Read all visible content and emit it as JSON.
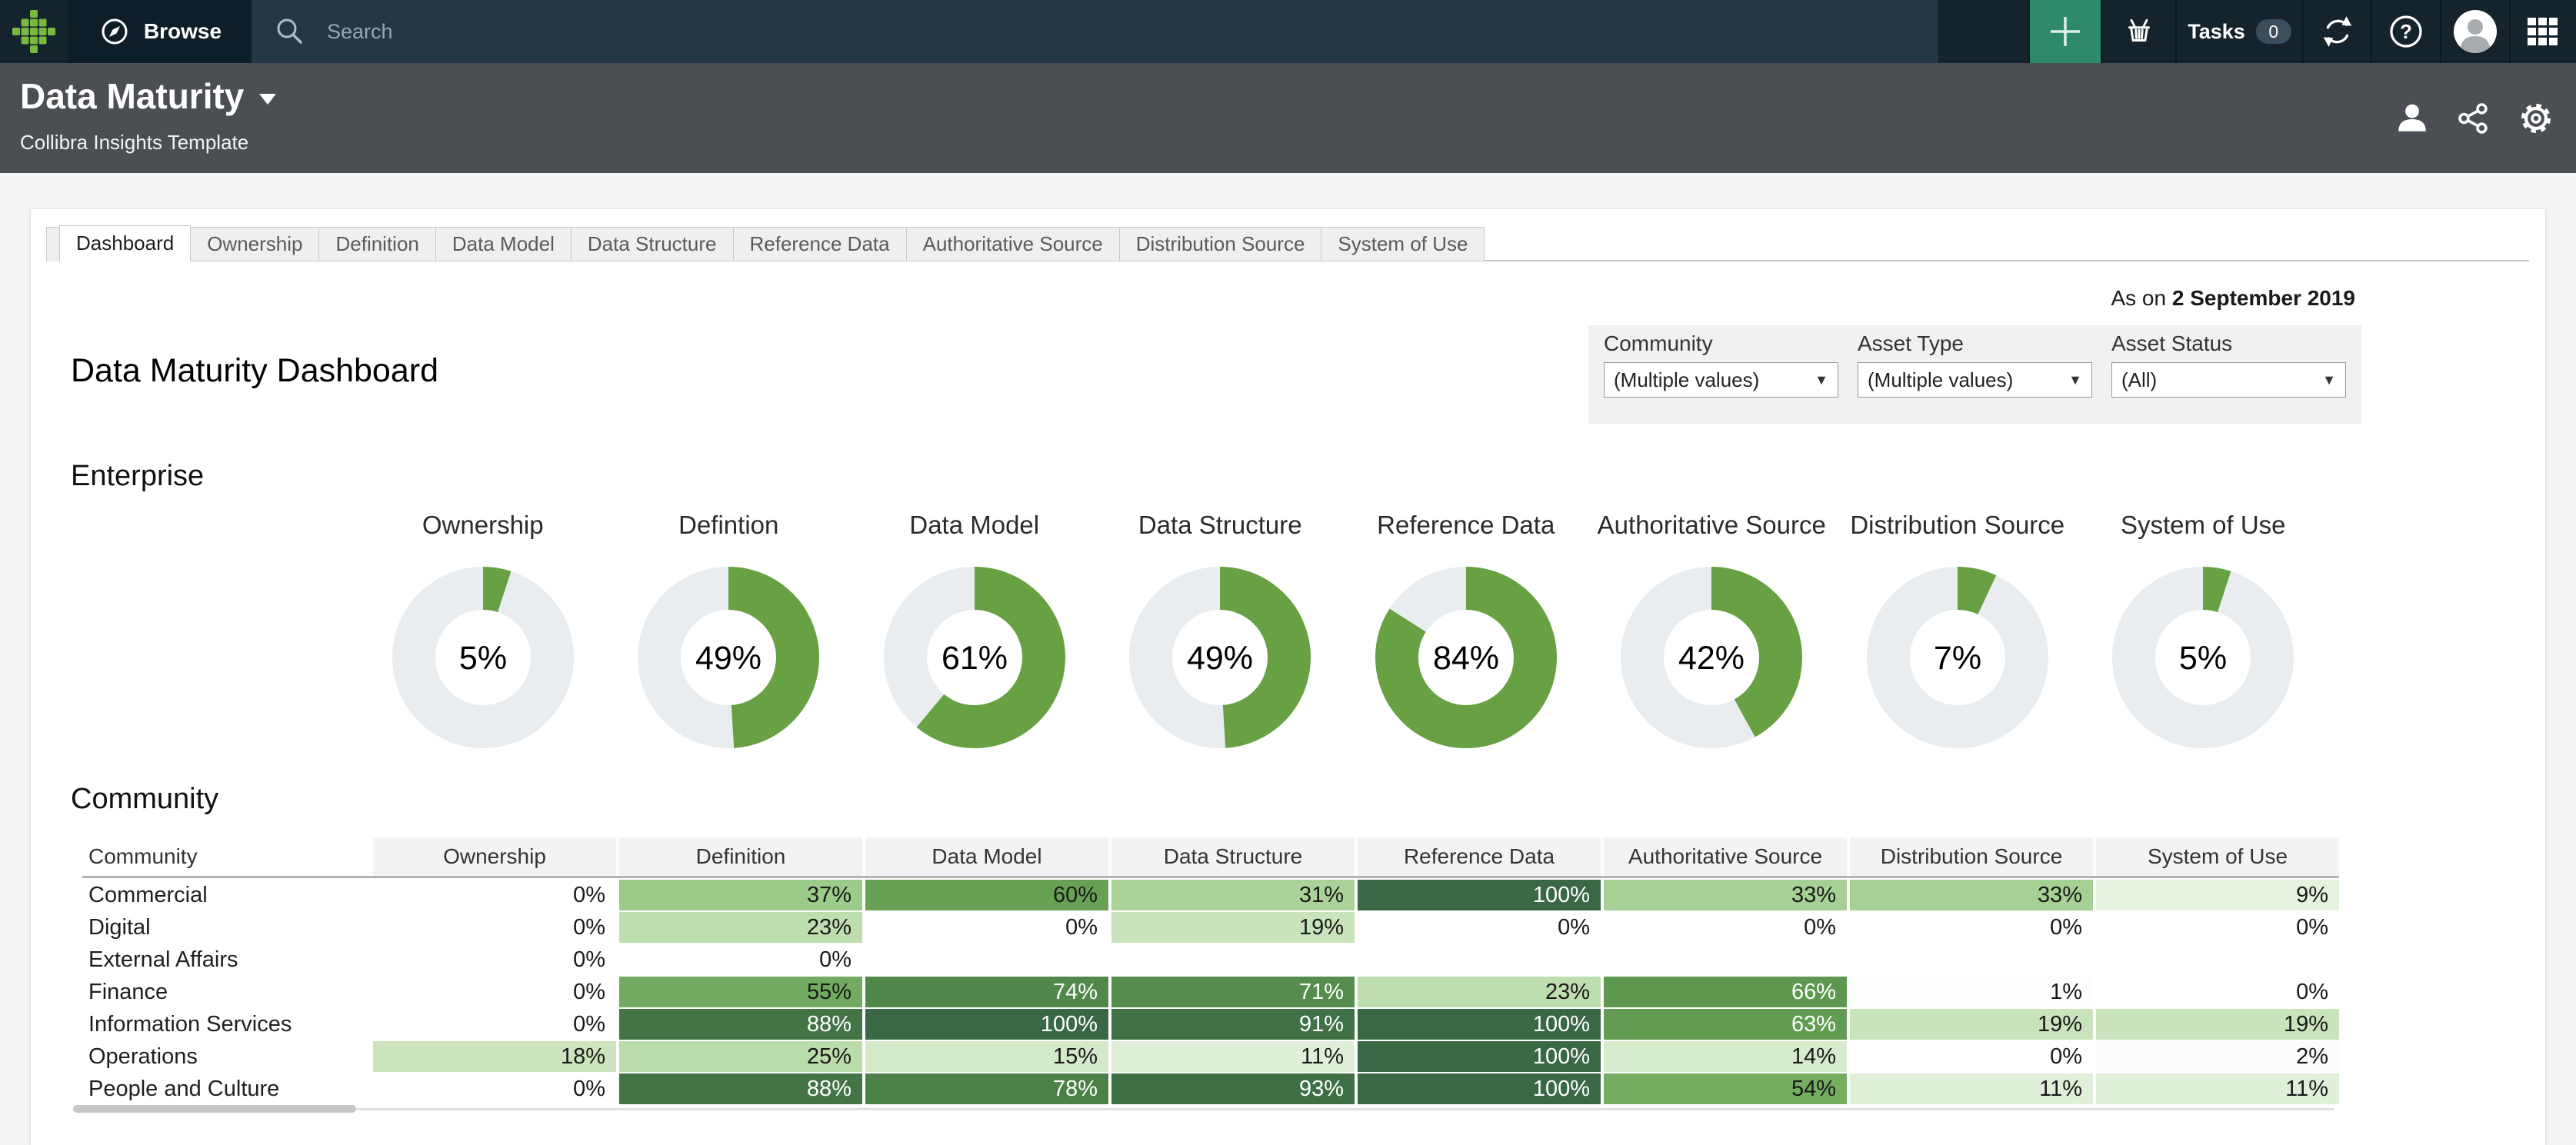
{
  "topbar": {
    "browse_label": "Browse",
    "search_placeholder": "Search",
    "tasks_label": "Tasks",
    "tasks_count": "0"
  },
  "header": {
    "title": "Data Maturity",
    "subtitle": "Collibra Insights Template"
  },
  "tabs": {
    "active": "Dashboard",
    "items": [
      "Dashboard",
      "Ownership",
      "Definition",
      "Data Model",
      "Data Structure",
      "Reference Data",
      "Authoritative Source",
      "Distribution Source",
      "System of Use"
    ]
  },
  "as_on": {
    "prefix": "As on",
    "date": "2 September 2019"
  },
  "filters": {
    "fields": [
      {
        "label": "Community",
        "value": "(Multiple values)"
      },
      {
        "label": "Asset Type",
        "value": "(Multiple values)"
      },
      {
        "label": "Asset Status",
        "value": "(All)"
      }
    ]
  },
  "main": {
    "page_title": "Data Maturity Dashboard",
    "enterprise_heading": "Enterprise",
    "community_heading": "Community"
  },
  "colors": {
    "accent_green": "#68a144",
    "donut_track": "#e9edf0",
    "topbar_bg": "#15232d",
    "search_bg": "#243743",
    "header_bg": "#4b4f54",
    "plus_button": "#2e8a68",
    "heatmap_max": "#3a6845"
  },
  "chart_data": [
    {
      "type": "pie",
      "subtype": "donut-grid",
      "section": "Enterprise",
      "unit": "%",
      "donuts": [
        {
          "label": "Ownership",
          "value": 5
        },
        {
          "label": "Defintion",
          "value": 49
        },
        {
          "label": "Data Model",
          "value": 61
        },
        {
          "label": "Data Structure",
          "value": 49
        },
        {
          "label": "Reference Data",
          "value": 84
        },
        {
          "label": "Authoritative Source",
          "value": 42
        },
        {
          "label": "Distribution Source",
          "value": 7
        },
        {
          "label": "System of Use",
          "value": 5
        }
      ]
    },
    {
      "type": "heatmap",
      "section": "Community",
      "unit": "%",
      "columns": [
        "Community",
        "Ownership",
        "Definition",
        "Data Model",
        "Data Structure",
        "Reference Data",
        "Authoritative Source",
        "Distribution Source",
        "System of Use"
      ],
      "rows": [
        {
          "label": "Commercial",
          "values": [
            0,
            37,
            60,
            31,
            100,
            33,
            33,
            9
          ]
        },
        {
          "label": "Digital",
          "values": [
            0,
            23,
            0,
            19,
            0,
            0,
            0,
            0
          ]
        },
        {
          "label": "External Affairs",
          "values": [
            0,
            0,
            null,
            null,
            null,
            null,
            null,
            null
          ]
        },
        {
          "label": "Finance",
          "values": [
            0,
            55,
            74,
            71,
            23,
            66,
            1,
            0
          ]
        },
        {
          "label": "Information Services",
          "values": [
            0,
            88,
            100,
            91,
            100,
            63,
            19,
            19
          ]
        },
        {
          "label": "Operations",
          "values": [
            18,
            25,
            15,
            11,
            100,
            14,
            0,
            2
          ]
        },
        {
          "label": "People and Culture",
          "values": [
            0,
            88,
            78,
            93,
            100,
            54,
            11,
            11
          ]
        }
      ],
      "color_scale": {
        "min_color": "#ffffff",
        "max_color": "#3a6845"
      }
    }
  ]
}
